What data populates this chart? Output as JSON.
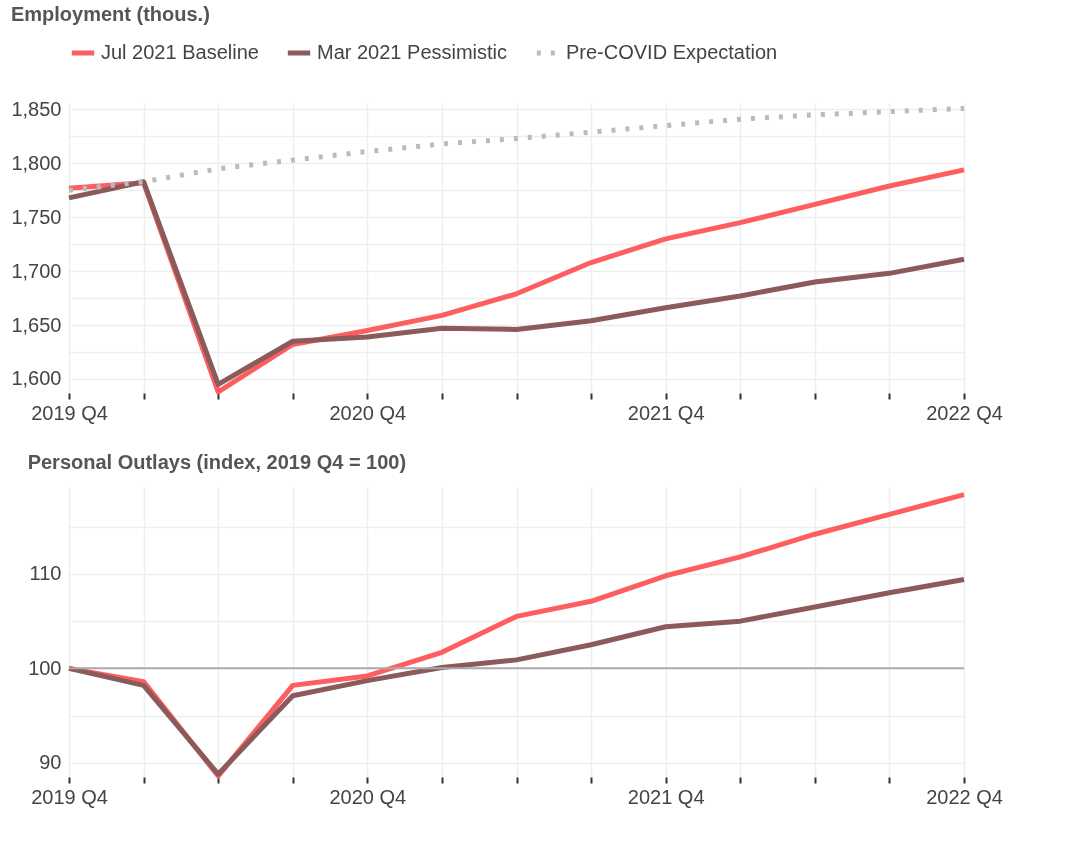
{
  "chart_data": [
    {
      "type": "line",
      "title": "Employment (thous.)",
      "categories": [
        "2019 Q4",
        null,
        null,
        null,
        "2020 Q4",
        null,
        null,
        null,
        "2021 Q4",
        null,
        null,
        null,
        "2022 Q4"
      ],
      "series": [
        {
          "name": "Jul 2021 Baseline",
          "color": "#fe5e5f",
          "values": [
            1777,
            1782,
            1588,
            1632,
            1645,
            1659,
            1679,
            1708,
            1730,
            1745,
            1762,
            1779,
            1794
          ]
        },
        {
          "name": "Mar 2021 Pessimistic",
          "color": "#8b5a5a",
          "values": [
            1768,
            1783,
            1595,
            1635,
            1639,
            1647,
            1646,
            1654,
            1666,
            1677,
            1690,
            1698,
            1711
          ]
        },
        {
          "name": "Pre-COVID Expectation",
          "color": "#bbbbbb",
          "line_style": "dotted",
          "values": [
            1775,
            1783,
            1795,
            1803,
            1811,
            1818,
            1823,
            1829,
            1835,
            1841,
            1845,
            1848,
            1851
          ]
        }
      ],
      "ylim": [
        1587,
        1856
      ],
      "yticks": [
        {
          "value": 1600,
          "label": "1,600"
        },
        {
          "value": 1625,
          "label": null
        },
        {
          "value": 1650,
          "label": "1,650"
        },
        {
          "value": 1675,
          "label": null
        },
        {
          "value": 1700,
          "label": "1,700"
        },
        {
          "value": 1725,
          "label": null
        },
        {
          "value": 1750,
          "label": "1,750"
        },
        {
          "value": 1775,
          "label": null
        },
        {
          "value": 1800,
          "label": "1,800"
        },
        {
          "value": 1825,
          "label": null
        },
        {
          "value": 1850,
          "label": "1,850"
        }
      ],
      "grid": true,
      "legend": "top",
      "line_style": "solid",
      "marker": "none"
    },
    {
      "type": "line",
      "title": "Personal Outlays (index, 2019 Q4 = 100)",
      "categories": [
        "2019 Q4",
        null,
        null,
        null,
        "2020 Q4",
        null,
        null,
        null,
        "2021 Q4",
        null,
        null,
        null,
        "2022 Q4"
      ],
      "series": [
        {
          "color": "#fe5e5f",
          "values": [
            100,
            98.6,
            88.6,
            98.2,
            99.2,
            101.7,
            105.5,
            107.1,
            109.8,
            111.8,
            114.2,
            116.3,
            118.4
          ]
        },
        {
          "color": "#8b5a5a",
          "values": [
            100,
            98.2,
            88.8,
            97.1,
            98.7,
            100.1,
            100.9,
            102.5,
            104.4,
            105.0,
            106.5,
            108.0,
            109.4
          ]
        }
      ],
      "ylim": [
        88.5,
        119.2
      ],
      "yticks": [
        90,
        {
          "value": 95,
          "label": null
        },
        100,
        {
          "value": 105,
          "label": null
        },
        110,
        {
          "value": 115,
          "label": null
        }
      ],
      "ref_lines": [
        {
          "axis": "y",
          "value": 100,
          "color": "#aaaaaa"
        }
      ],
      "grid": true,
      "line_style": "solid",
      "marker": "none"
    }
  ]
}
